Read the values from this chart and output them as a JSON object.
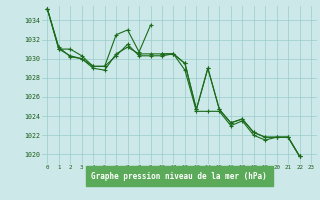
{
  "bg_color": "#cce8e8",
  "grid_color": "#99cccc",
  "line_color": "#1a6b1a",
  "title": "Graphe pression niveau de la mer (hPa)",
  "title_color": "#1a5c1a",
  "title_bg": "#5aaa5a",
  "ylim": [
    1019.0,
    1035.5
  ],
  "xlim": [
    -0.5,
    23.5
  ],
  "yticks": [
    1020,
    1022,
    1024,
    1026,
    1028,
    1030,
    1032,
    1034
  ],
  "xticks": [
    0,
    1,
    2,
    3,
    4,
    5,
    6,
    7,
    8,
    9,
    10,
    11,
    12,
    13,
    14,
    15,
    16,
    17,
    18,
    19,
    20,
    21,
    22,
    23
  ],
  "series": [
    [
      1035.2,
      1031.0,
      1031.0,
      1030.3,
      1029.2,
      1029.2,
      1030.3,
      1031.5,
      1030.3,
      1030.3,
      1030.3,
      1030.5,
      1029.5,
      1024.7,
      1029.0,
      1024.7,
      1023.3,
      1023.7,
      1022.3,
      1021.8,
      1021.8,
      1021.8,
      1019.8,
      null
    ],
    [
      1035.2,
      1031.0,
      1030.3,
      1030.0,
      1029.2,
      1029.2,
      1032.5,
      1033.0,
      1030.7,
      1033.5,
      null,
      null,
      null,
      null,
      null,
      null,
      null,
      null,
      null,
      null,
      null,
      null,
      null,
      null
    ],
    [
      null,
      null,
      null,
      null,
      null,
      null,
      null,
      null,
      null,
      null,
      1030.5,
      1030.5,
      1029.5,
      1024.7,
      1029.0,
      1024.7,
      1023.3,
      1023.7,
      1022.3,
      1021.8,
      1021.8,
      1021.8,
      1019.8,
      null
    ],
    [
      1035.2,
      1031.2,
      1030.2,
      1030.0,
      1029.0,
      1028.8,
      1030.5,
      1031.2,
      1030.5,
      1030.5,
      1030.5,
      1030.5,
      1028.8,
      1024.5,
      1024.5,
      1024.5,
      1023.0,
      1023.5,
      1022.0,
      1021.5,
      1021.8,
      1021.8,
      1019.8,
      null
    ]
  ]
}
